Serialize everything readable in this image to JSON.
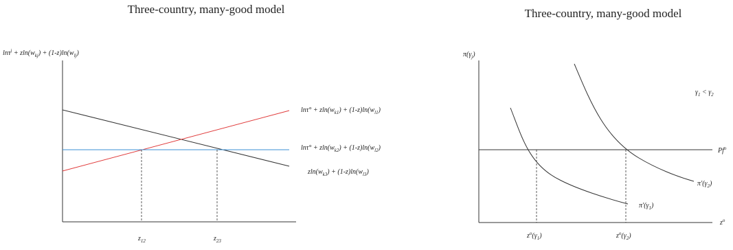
{
  "left": {
    "title": "Three-country, many-good model",
    "ylabel": {
      "a": "ln",
      "b": "τ",
      "c": "j",
      "d": " + zln(w",
      "e": "kj",
      "f": ") + (1-z)ln(w",
      "g": "lj",
      "h": ")"
    },
    "line_red": {
      "a": "lnτ° + zln(w",
      "b": "k1",
      "c": ") + (1-z)ln(w",
      "d": "l1",
      "e": ")"
    },
    "line_blue": {
      "a": "lnτ° + zln(w",
      "b": "k2",
      "c": ") + (1-z)ln(w",
      "d": "l2",
      "e": ")"
    },
    "line_black": {
      "a": "zln(w",
      "b": "k3",
      "c": ") + (1-z)ln(w",
      "d": "l3",
      "e": ")"
    },
    "z12": {
      "a": "z",
      "b": "12"
    },
    "z23": {
      "a": "z",
      "b": "23"
    },
    "colors": {
      "red": "#e03a3a",
      "blue": "#3a8fd6",
      "black": "#333333"
    }
  },
  "right": {
    "title": "Three-country, many-good model",
    "ylabel": {
      "a": "π(γ",
      "b": "j",
      "c": ")"
    },
    "legend": {
      "a": "γ",
      "b": "1",
      "c": " < γ",
      "d": "2"
    },
    "pf_label": {
      "a": "Pf",
      "b": "o"
    },
    "xaxis_label": {
      "a": "z",
      "b": "o"
    },
    "curve2_label": {
      "a": "π′(γ",
      "b": "2",
      "c": ")"
    },
    "curve1_label": {
      "a": "π′(γ",
      "b": "1",
      "c": ")"
    },
    "x1_label": {
      "a": "z",
      "b": "o",
      "c": "(γ",
      "d": "1",
      "e": ")"
    },
    "x2_label": {
      "a": "z",
      "b": "o",
      "c": "(γ",
      "d": "2",
      "e": ")"
    }
  }
}
